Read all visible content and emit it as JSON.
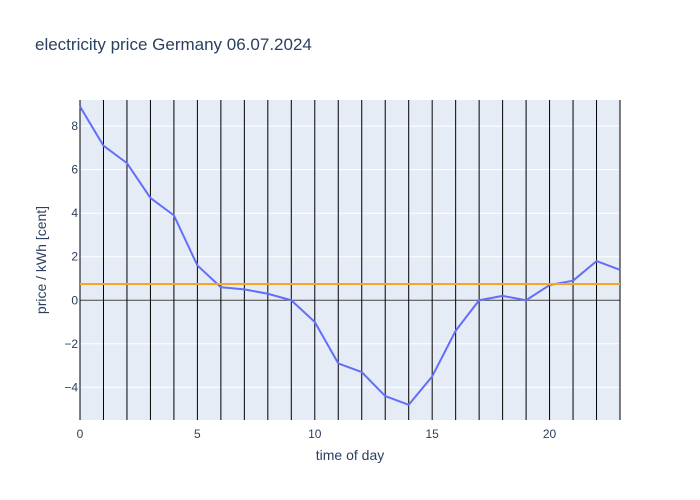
{
  "chart_data": {
    "type": "line",
    "title": "electricity price Germany 06.07.2024",
    "xlabel": "time of day",
    "ylabel": "price / kWh [cent]",
    "xlim": [
      0,
      23
    ],
    "ylim": [
      -5.5,
      9.2
    ],
    "x_ticks": [
      0,
      5,
      10,
      15,
      20
    ],
    "y_ticks": [
      -4,
      -2,
      0,
      2,
      4,
      6,
      8
    ],
    "y_tick_labels": [
      "−4",
      "−2",
      "0",
      "2",
      "4",
      "6",
      "8"
    ],
    "hour_lines": [
      1,
      2,
      3,
      4,
      5,
      6,
      7,
      8,
      9,
      10,
      11,
      12,
      13,
      14,
      15,
      16,
      17,
      18,
      19,
      20,
      21,
      22,
      23
    ],
    "series": [
      {
        "color": "#636efa",
        "x": [
          0,
          1,
          2,
          3,
          4,
          5,
          6,
          7,
          8,
          9,
          10,
          11,
          12,
          13,
          14,
          15,
          16,
          17,
          18,
          19,
          20,
          21,
          22,
          23
        ],
        "y": [
          8.9,
          7.1,
          6.3,
          4.7,
          3.9,
          1.6,
          0.6,
          0.5,
          0.3,
          0.0,
          -1.0,
          -2.9,
          -3.3,
          -4.4,
          -4.8,
          -3.5,
          -1.4,
          0.0,
          0.2,
          0.0,
          0.7,
          0.9,
          1.8,
          1.4
        ]
      },
      {
        "color": "#f5a623",
        "x": [
          0,
          23
        ],
        "y": [
          0.75,
          0.75
        ]
      }
    ],
    "grid": true,
    "legend": "none",
    "plot_bgcolor": "#e5ecf6",
    "grid_color": "#ffffff",
    "vline_color": "#000000",
    "zero_line_color": "#444444"
  }
}
